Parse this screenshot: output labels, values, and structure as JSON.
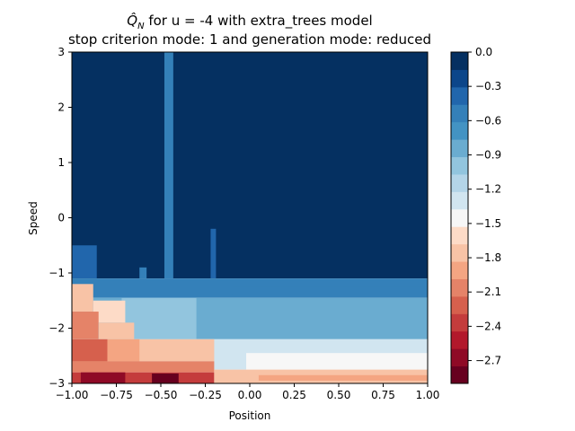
{
  "chart_data": {
    "type": "heatmap",
    "title_math_symbol": "Q̂",
    "title_math_subscript": "N",
    "title_line1_rest": " for u = -4 with extra_trees model",
    "title_line2": "stop criterion mode: 1 and generation mode: reduced",
    "xlabel": "Position",
    "ylabel": "Speed",
    "xlim": [
      -1.0,
      1.0
    ],
    "ylim": [
      -3,
      3
    ],
    "x_ticks": [
      -1.0,
      -0.75,
      -0.5,
      -0.25,
      0.0,
      0.25,
      0.5,
      0.75,
      1.0
    ],
    "x_tick_labels": [
      "−1.00",
      "−0.75",
      "−0.50",
      "−0.25",
      "0.00",
      "0.25",
      "0.50",
      "0.75",
      "1.00"
    ],
    "y_ticks": [
      -3,
      -2,
      -1,
      0,
      1,
      2,
      3
    ],
    "y_tick_labels": [
      "−3",
      "−2",
      "−1",
      "0",
      "1",
      "2",
      "3"
    ],
    "colormap": "RdBu",
    "colorbar": {
      "min": -2.9,
      "max": 0.0,
      "level_step": 0.15,
      "ticks": [
        0.0,
        -0.3,
        -0.6,
        -0.9,
        -1.2,
        -1.5,
        -1.8,
        -2.1,
        -2.4,
        -2.7
      ],
      "tick_labels": [
        "0.0",
        "−0.3",
        "−0.6",
        "−0.9",
        "−1.2",
        "−1.5",
        "−1.8",
        "−2.1",
        "−2.4",
        "−2.7"
      ],
      "colors": [
        "#67001f",
        "#8f0a26",
        "#b2182b",
        "#c43c3c",
        "#d6604d",
        "#e58368",
        "#f4a582",
        "#f8c3a6",
        "#fddbc7",
        "#f7f7f7",
        "#d1e5f0",
        "#b4d5e8",
        "#92c5de",
        "#6aacd0",
        "#4393c3",
        "#3480b9",
        "#2166ac",
        "#0c468a",
        "#053061"
      ]
    },
    "regions_note_removed": true,
    "cells": [
      {
        "x0": -1.0,
        "x1": 1.0,
        "y0": -1.1,
        "y1": 3.0,
        "v": 0.0
      },
      {
        "x0": -0.48,
        "x1": -0.43,
        "y0": -1.1,
        "y1": 3.0,
        "v": -0.5
      },
      {
        "x0": -1.0,
        "x1": -0.86,
        "y0": -1.1,
        "y1": -0.5,
        "v": -0.4
      },
      {
        "x0": -0.22,
        "x1": -0.19,
        "y0": -1.1,
        "y1": -0.2,
        "v": -0.4
      },
      {
        "x0": -0.62,
        "x1": -0.58,
        "y0": -1.1,
        "y1": -0.9,
        "v": -0.5
      },
      {
        "x0": -1.0,
        "x1": 1.0,
        "y0": -1.45,
        "y1": -1.1,
        "v": -0.6
      },
      {
        "x0": -0.1,
        "x1": 1.0,
        "y0": -1.4,
        "y1": -1.25,
        "v": -0.55
      },
      {
        "x0": -1.0,
        "x1": 1.0,
        "y0": -2.2,
        "y1": -1.45,
        "v": -0.9
      },
      {
        "x0": -0.72,
        "x1": -0.3,
        "y0": -2.2,
        "y1": -1.45,
        "v": -1.05
      },
      {
        "x0": -1.0,
        "x1": -0.88,
        "y0": -1.7,
        "y1": -1.2,
        "v": -1.8
      },
      {
        "x0": -0.88,
        "x1": -0.7,
        "y0": -1.9,
        "y1": -1.5,
        "v": -1.65
      },
      {
        "x0": -1.0,
        "x1": -0.85,
        "y0": -2.2,
        "y1": -1.7,
        "v": -2.0
      },
      {
        "x0": -0.85,
        "x1": -0.65,
        "y0": -2.2,
        "y1": -1.9,
        "v": -1.8
      },
      {
        "x0": -1.0,
        "x1": 1.0,
        "y0": -2.75,
        "y1": -2.2,
        "v": -1.3
      },
      {
        "x0": -1.0,
        "x1": -0.2,
        "y0": -2.6,
        "y1": -2.2,
        "v": -1.7
      },
      {
        "x0": -1.0,
        "x1": -0.8,
        "y0": -2.6,
        "y1": -2.2,
        "v": -2.2
      },
      {
        "x0": -0.8,
        "x1": -0.62,
        "y0": -2.6,
        "y1": -2.2,
        "v": -1.95
      },
      {
        "x0": -0.02,
        "x1": 1.0,
        "y0": -2.75,
        "y1": -2.45,
        "v": -1.45
      },
      {
        "x0": -1.0,
        "x1": -0.2,
        "y0": -2.8,
        "y1": -2.6,
        "v": -2.0
      },
      {
        "x0": -1.0,
        "x1": -0.2,
        "y0": -3.0,
        "y1": -2.8,
        "v": -2.3
      },
      {
        "x0": -0.95,
        "x1": -0.7,
        "y0": -3.0,
        "y1": -2.8,
        "v": -2.6
      },
      {
        "x0": -0.55,
        "x1": -0.4,
        "y0": -3.0,
        "y1": -2.82,
        "v": -2.8
      },
      {
        "x0": -0.2,
        "x1": 1.0,
        "y0": -3.0,
        "y1": -2.75,
        "v": -1.75
      },
      {
        "x0": 0.05,
        "x1": 1.0,
        "y0": -2.95,
        "y1": -2.85,
        "v": -1.9
      }
    ]
  }
}
